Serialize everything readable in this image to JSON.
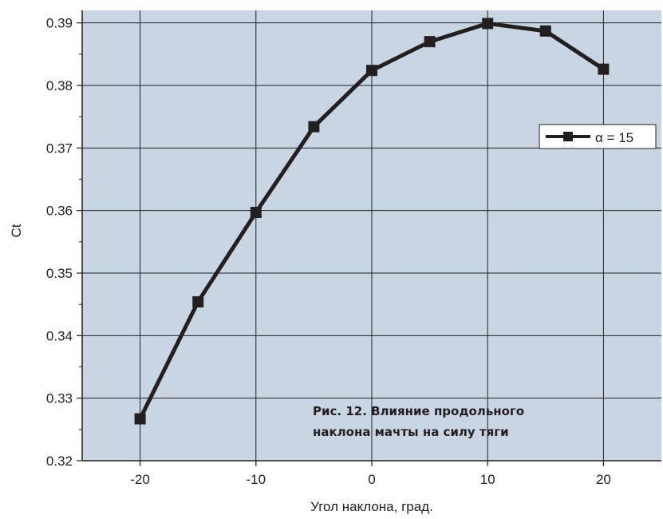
{
  "chart_data": {
    "type": "line",
    "xlabel": "Угол наклона, град.",
    "ylabel": "Ct",
    "xlim": [
      -25,
      25
    ],
    "ylim": [
      0.32,
      0.392
    ],
    "x_ticks": [
      "-20",
      "-10",
      "0",
      "10",
      "20"
    ],
    "y_ticks": [
      "0.32",
      "0.33",
      "0.34",
      "0.35",
      "0.36",
      "0.37",
      "0.38",
      "0.39"
    ],
    "grid": true,
    "legend_position": "right",
    "series": [
      {
        "name": "α = 15",
        "marker": "square",
        "x": [
          -20,
          -15,
          -10,
          -5,
          0,
          5,
          10,
          15,
          20
        ],
        "y": [
          0.3267,
          0.3454,
          0.3597,
          0.3734,
          0.3824,
          0.387,
          0.3899,
          0.3887,
          0.3826
        ]
      }
    ],
    "caption": [
      "Рис. 12. Влияние продольного",
      "наклона мачты на силу тяги"
    ]
  },
  "colors": {
    "plot_background": "#c8d5e3",
    "grid": "#231f20",
    "line": "#231f20",
    "legend_background": "#ffffff"
  }
}
